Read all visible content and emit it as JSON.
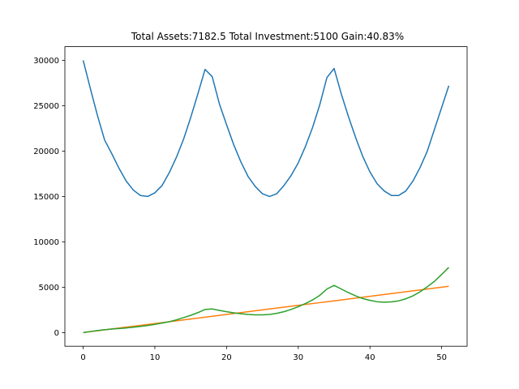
{
  "chart_data": {
    "type": "line",
    "title": "Total Assets:7182.5  Total Investment:5100  Gain:40.83%",
    "xlabel": "",
    "ylabel": "",
    "xlim": [
      -2.55,
      53.55
    ],
    "ylim": [
      -1500,
      31500
    ],
    "x_ticks": [
      0,
      10,
      20,
      30,
      40,
      50
    ],
    "y_ticks": [
      0,
      5000,
      10000,
      15000,
      20000,
      25000,
      30000
    ],
    "grid": false,
    "legend": "none",
    "x": [
      0,
      1,
      2,
      3,
      4,
      5,
      6,
      7,
      8,
      9,
      10,
      11,
      12,
      13,
      14,
      15,
      16,
      17,
      18,
      19,
      20,
      21,
      22,
      23,
      24,
      25,
      26,
      27,
      28,
      29,
      30,
      31,
      32,
      33,
      34,
      35,
      36,
      37,
      38,
      39,
      40,
      41,
      42,
      43,
      44,
      45,
      46,
      47,
      48,
      49,
      50,
      51
    ],
    "series": [
      {
        "color": "#1f77b4",
        "values": [
          30000,
          26900,
          23900,
          21200,
          19700,
          18100,
          16700,
          15700,
          15100,
          15000,
          15400,
          16200,
          17600,
          19300,
          21300,
          23700,
          26300,
          29000,
          28200,
          25200,
          22900,
          20700,
          18800,
          17200,
          16100,
          15300,
          15000,
          15300,
          16200,
          17300,
          18700,
          20500,
          22600,
          25100,
          28100,
          29100,
          26300,
          23800,
          21500,
          19400,
          17700,
          16400,
          15600,
          15100,
          15100,
          15600,
          16700,
          18200,
          20000,
          22400,
          24800,
          27200
        ]
      },
      {
        "color": "#ff7f0e",
        "values": [
          0,
          100,
          200,
          300,
          400,
          500,
          600,
          700,
          800,
          900,
          1000,
          1100,
          1200,
          1300,
          1400,
          1500,
          1600,
          1700,
          1800,
          1900,
          2000,
          2100,
          2200,
          2300,
          2400,
          2500,
          2600,
          2700,
          2800,
          2900,
          3000,
          3100,
          3200,
          3300,
          3400,
          3500,
          3600,
          3700,
          3800,
          3900,
          4000,
          4100,
          4200,
          4300,
          4400,
          4500,
          4600,
          4700,
          4800,
          4900,
          5000,
          5100
        ]
      },
      {
        "color": "#2ca02c",
        "values": [
          0,
          120,
          230,
          320,
          390,
          450,
          510,
          590,
          680,
          780,
          900,
          1050,
          1200,
          1400,
          1650,
          1900,
          2200,
          2550,
          2600,
          2450,
          2300,
          2180,
          2080,
          2000,
          1960,
          1960,
          2000,
          2120,
          2300,
          2550,
          2850,
          3200,
          3600,
          4100,
          4800,
          5200,
          4800,
          4400,
          4050,
          3750,
          3550,
          3400,
          3350,
          3380,
          3500,
          3720,
          4050,
          4500,
          5050,
          5650,
          6400,
          7182.5
        ]
      }
    ]
  }
}
